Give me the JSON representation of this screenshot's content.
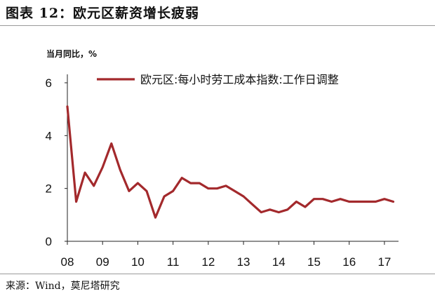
{
  "header": {
    "title": "图表 12：欧元区薪资增长疲弱"
  },
  "footer": {
    "source": "来源：Wind，莫尼塔研究"
  },
  "chart_data": {
    "type": "line",
    "ylabel": "当月同比，%",
    "ylim": [
      0,
      6
    ],
    "yticks": [
      0,
      2,
      4,
      6
    ],
    "xlim": [
      2008.0,
      2017.4
    ],
    "xticks": [
      {
        "value": 2008,
        "label": "08"
      },
      {
        "value": 2009,
        "label": "09"
      },
      {
        "value": 2010,
        "label": "10"
      },
      {
        "value": 2011,
        "label": "11"
      },
      {
        "value": 2012,
        "label": "12"
      },
      {
        "value": 2013,
        "label": "13"
      },
      {
        "value": 2014,
        "label": "14"
      },
      {
        "value": 2015,
        "label": "15"
      },
      {
        "value": 2016,
        "label": "16"
      },
      {
        "value": 2017,
        "label": "17"
      }
    ],
    "grid": false,
    "legend_position": "top",
    "series": [
      {
        "name": "欧元区:每小时劳工成本指数:工作日调整",
        "color": "#a3292c",
        "x": [
          2008.0,
          2008.25,
          2008.5,
          2008.75,
          2009.0,
          2009.25,
          2009.5,
          2009.75,
          2010.0,
          2010.25,
          2010.5,
          2010.75,
          2011.0,
          2011.25,
          2011.5,
          2011.75,
          2012.0,
          2012.25,
          2012.5,
          2012.75,
          2013.0,
          2013.25,
          2013.5,
          2013.75,
          2014.0,
          2014.25,
          2014.5,
          2014.75,
          2015.0,
          2015.25,
          2015.5,
          2015.75,
          2016.0,
          2016.25,
          2016.5,
          2016.75,
          2017.0,
          2017.25
        ],
        "y": [
          5.1,
          1.5,
          2.6,
          2.1,
          2.8,
          3.7,
          2.7,
          1.9,
          2.2,
          1.9,
          0.9,
          1.7,
          1.9,
          2.4,
          2.2,
          2.2,
          2.0,
          2.0,
          2.1,
          1.9,
          1.7,
          1.4,
          1.1,
          1.2,
          1.1,
          1.2,
          1.5,
          1.3,
          1.6,
          1.6,
          1.5,
          1.6,
          1.5,
          1.5,
          1.5,
          1.5,
          1.6,
          1.5
        ]
      }
    ]
  }
}
